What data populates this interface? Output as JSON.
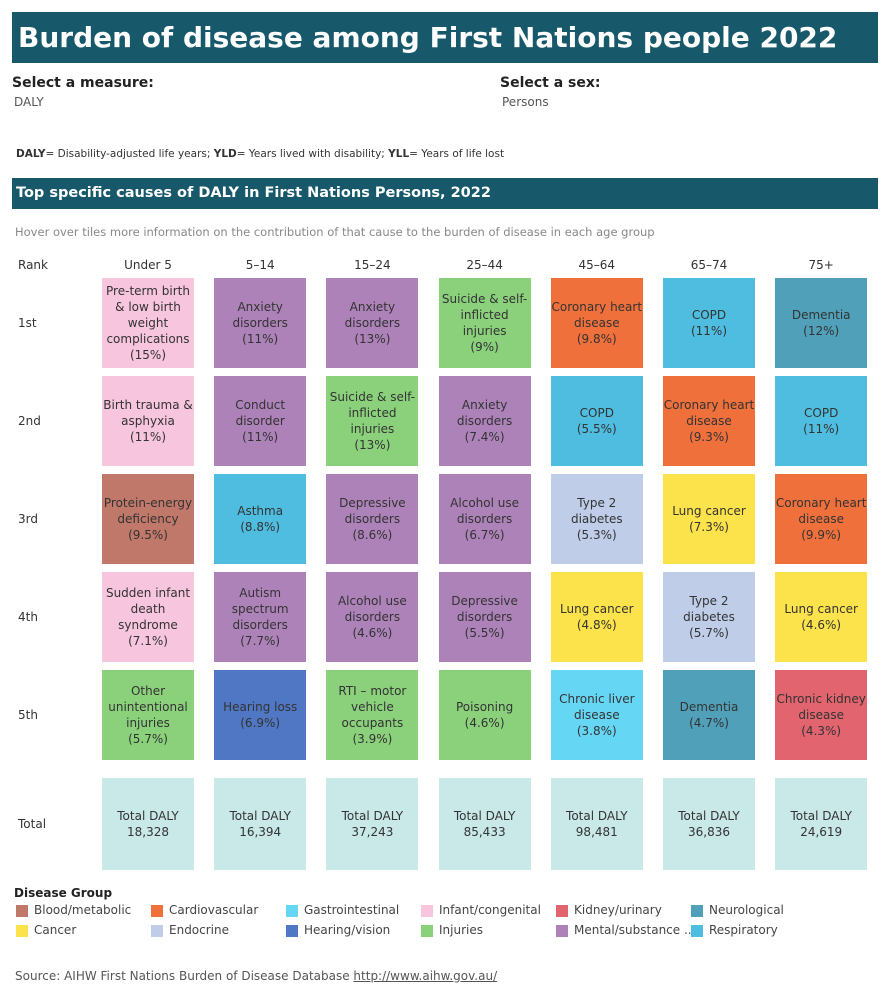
{
  "header": {
    "title": "Burden of disease among First Nations people 2022",
    "color": "#17596b"
  },
  "filters": [
    {
      "label": "Select a measure:",
      "value": "DALY"
    },
    {
      "label": "Select a sex:",
      "value": "Persons"
    }
  ],
  "note": [
    {
      "term": "DALY",
      "text": "= Disability-adjusted life years; "
    },
    {
      "term": "YLD",
      "text": "= Years lived with disability; "
    },
    {
      "term": "YLL",
      "text": "= Years of life lost"
    }
  ],
  "section": {
    "title": "Top specific causes of DALY in First Nations Persons, 2022",
    "hint": "Hover over tiles more information on the contribution of that cause to the burden of disease in each age group"
  },
  "table": {
    "rank_header": "Rank",
    "columns": [
      "Under 5",
      "5–14",
      "15–24",
      "25–44",
      "45–64",
      "65–74",
      "75+"
    ],
    "rank_labels": [
      "1st",
      "2nd",
      "3rd",
      "4th",
      "5th"
    ],
    "total_label": "Total",
    "total_color": "#c9e8e8",
    "rows": [
      [
        {
          "label": "Pre-term birth & low birth weight complications",
          "share": "(15%)",
          "color": "#f7c5de"
        },
        {
          "label": "Anxiety disorders",
          "share": "(11%)",
          "color": "#ad82b8"
        },
        {
          "label": "Anxiety disorders",
          "share": "(13%)",
          "color": "#ad82b8"
        },
        {
          "label": "Suicide & self-inflicted injuries",
          "share": "(9%)",
          "color": "#8bd17c"
        },
        {
          "label": "Coronary heart disease",
          "share": "(9.8%)",
          "color": "#f0703c"
        },
        {
          "label": "COPD",
          "share": "(11%)",
          "color": "#4fbde0"
        },
        {
          "label": "Dementia",
          "share": "(12%)",
          "color": "#4fa0b8"
        }
      ],
      [
        {
          "label": "Birth trauma & asphyxia",
          "share": "(11%)",
          "color": "#f7c5de"
        },
        {
          "label": "Conduct disorder",
          "share": "(11%)",
          "color": "#ad82b8"
        },
        {
          "label": "Suicide & self-inflicted injuries",
          "share": "(13%)",
          "color": "#8bd17c"
        },
        {
          "label": "Anxiety disorders",
          "share": "(7.4%)",
          "color": "#ad82b8"
        },
        {
          "label": "COPD",
          "share": "(5.5%)",
          "color": "#4fbde0"
        },
        {
          "label": "Coronary heart disease",
          "share": "(9.3%)",
          "color": "#f0703c"
        },
        {
          "label": "COPD",
          "share": "(11%)",
          "color": "#4fbde0"
        }
      ],
      [
        {
          "label": "Protein-energy deficiency",
          "share": "(9.5%)",
          "color": "#c0786a"
        },
        {
          "label": "Asthma",
          "share": "(8.8%)",
          "color": "#4fbde0"
        },
        {
          "label": "Depressive disorders",
          "share": "(8.6%)",
          "color": "#ad82b8"
        },
        {
          "label": "Alcohol use disorders",
          "share": "(6.7%)",
          "color": "#ad82b8"
        },
        {
          "label": "Type 2 diabetes",
          "share": "(5.3%)",
          "color": "#bfcde8"
        },
        {
          "label": "Lung cancer",
          "share": "(7.3%)",
          "color": "#fce34b"
        },
        {
          "label": "Coronary heart disease",
          "share": "(9.9%)",
          "color": "#f0703c"
        }
      ],
      [
        {
          "label": "Sudden infant death syndrome",
          "share": "(7.1%)",
          "color": "#f7c5de"
        },
        {
          "label": "Autism spectrum disorders",
          "share": "(7.7%)",
          "color": "#ad82b8"
        },
        {
          "label": "Alcohol use disorders",
          "share": "(4.6%)",
          "color": "#ad82b8"
        },
        {
          "label": "Depressive disorders",
          "share": "(5.5%)",
          "color": "#ad82b8"
        },
        {
          "label": "Lung cancer",
          "share": "(4.8%)",
          "color": "#fce34b"
        },
        {
          "label": "Type 2 diabetes",
          "share": "(5.7%)",
          "color": "#bfcde8"
        },
        {
          "label": "Lung cancer",
          "share": "(4.6%)",
          "color": "#fce34b"
        }
      ],
      [
        {
          "label": "Other unintentional injuries",
          "share": "(5.7%)",
          "color": "#8bd17c"
        },
        {
          "label": "Hearing loss",
          "share": "(6.9%)",
          "color": "#4f77c4"
        },
        {
          "label": "RTI – motor vehicle occupants",
          "share": "(3.9%)",
          "color": "#8bd17c"
        },
        {
          "label": "Poisoning",
          "share": "(4.6%)",
          "color": "#8bd17c"
        },
        {
          "label": "Chronic liver disease",
          "share": "(3.8%)",
          "color": "#66d6f5"
        },
        {
          "label": "Dementia",
          "share": "(4.7%)",
          "color": "#4fa0b8"
        },
        {
          "label": "Chronic kidney disease",
          "share": "(4.3%)",
          "color": "#e1646e"
        }
      ]
    ],
    "totals": [
      {
        "label": "Total DALY",
        "value": "18,328"
      },
      {
        "label": "Total DALY",
        "value": "16,394"
      },
      {
        "label": "Total DALY",
        "value": "37,243"
      },
      {
        "label": "Total DALY",
        "value": "85,433"
      },
      {
        "label": "Total DALY",
        "value": "98,481"
      },
      {
        "label": "Total DALY",
        "value": "36,836"
      },
      {
        "label": "Total DALY",
        "value": "24,619"
      }
    ]
  },
  "legend": {
    "title": "Disease Group",
    "items": [
      {
        "name": "Blood/metabolic",
        "color": "#c0786a"
      },
      {
        "name": "Cardiovascular",
        "color": "#f0703c"
      },
      {
        "name": "Gastrointestinal",
        "color": "#66d6f5"
      },
      {
        "name": "Infant/congenital",
        "color": "#f7c5de"
      },
      {
        "name": "Kidney/urinary",
        "color": "#e1646e"
      },
      {
        "name": "Neurological",
        "color": "#4fa0b8"
      },
      {
        "name": "Cancer",
        "color": "#fce34b"
      },
      {
        "name": "Endocrine",
        "color": "#bfcde8"
      },
      {
        "name": "Hearing/vision",
        "color": "#4f77c4"
      },
      {
        "name": "Injuries",
        "color": "#8bd17c"
      },
      {
        "name": "Mental/substance ..",
        "color": "#ad82b8"
      },
      {
        "name": "Respiratory",
        "color": "#4fbde0"
      }
    ]
  },
  "source": {
    "text": "Source: AIHW First Nations Burden of Disease Database ",
    "link": "http://www.aihw.gov.au/"
  }
}
